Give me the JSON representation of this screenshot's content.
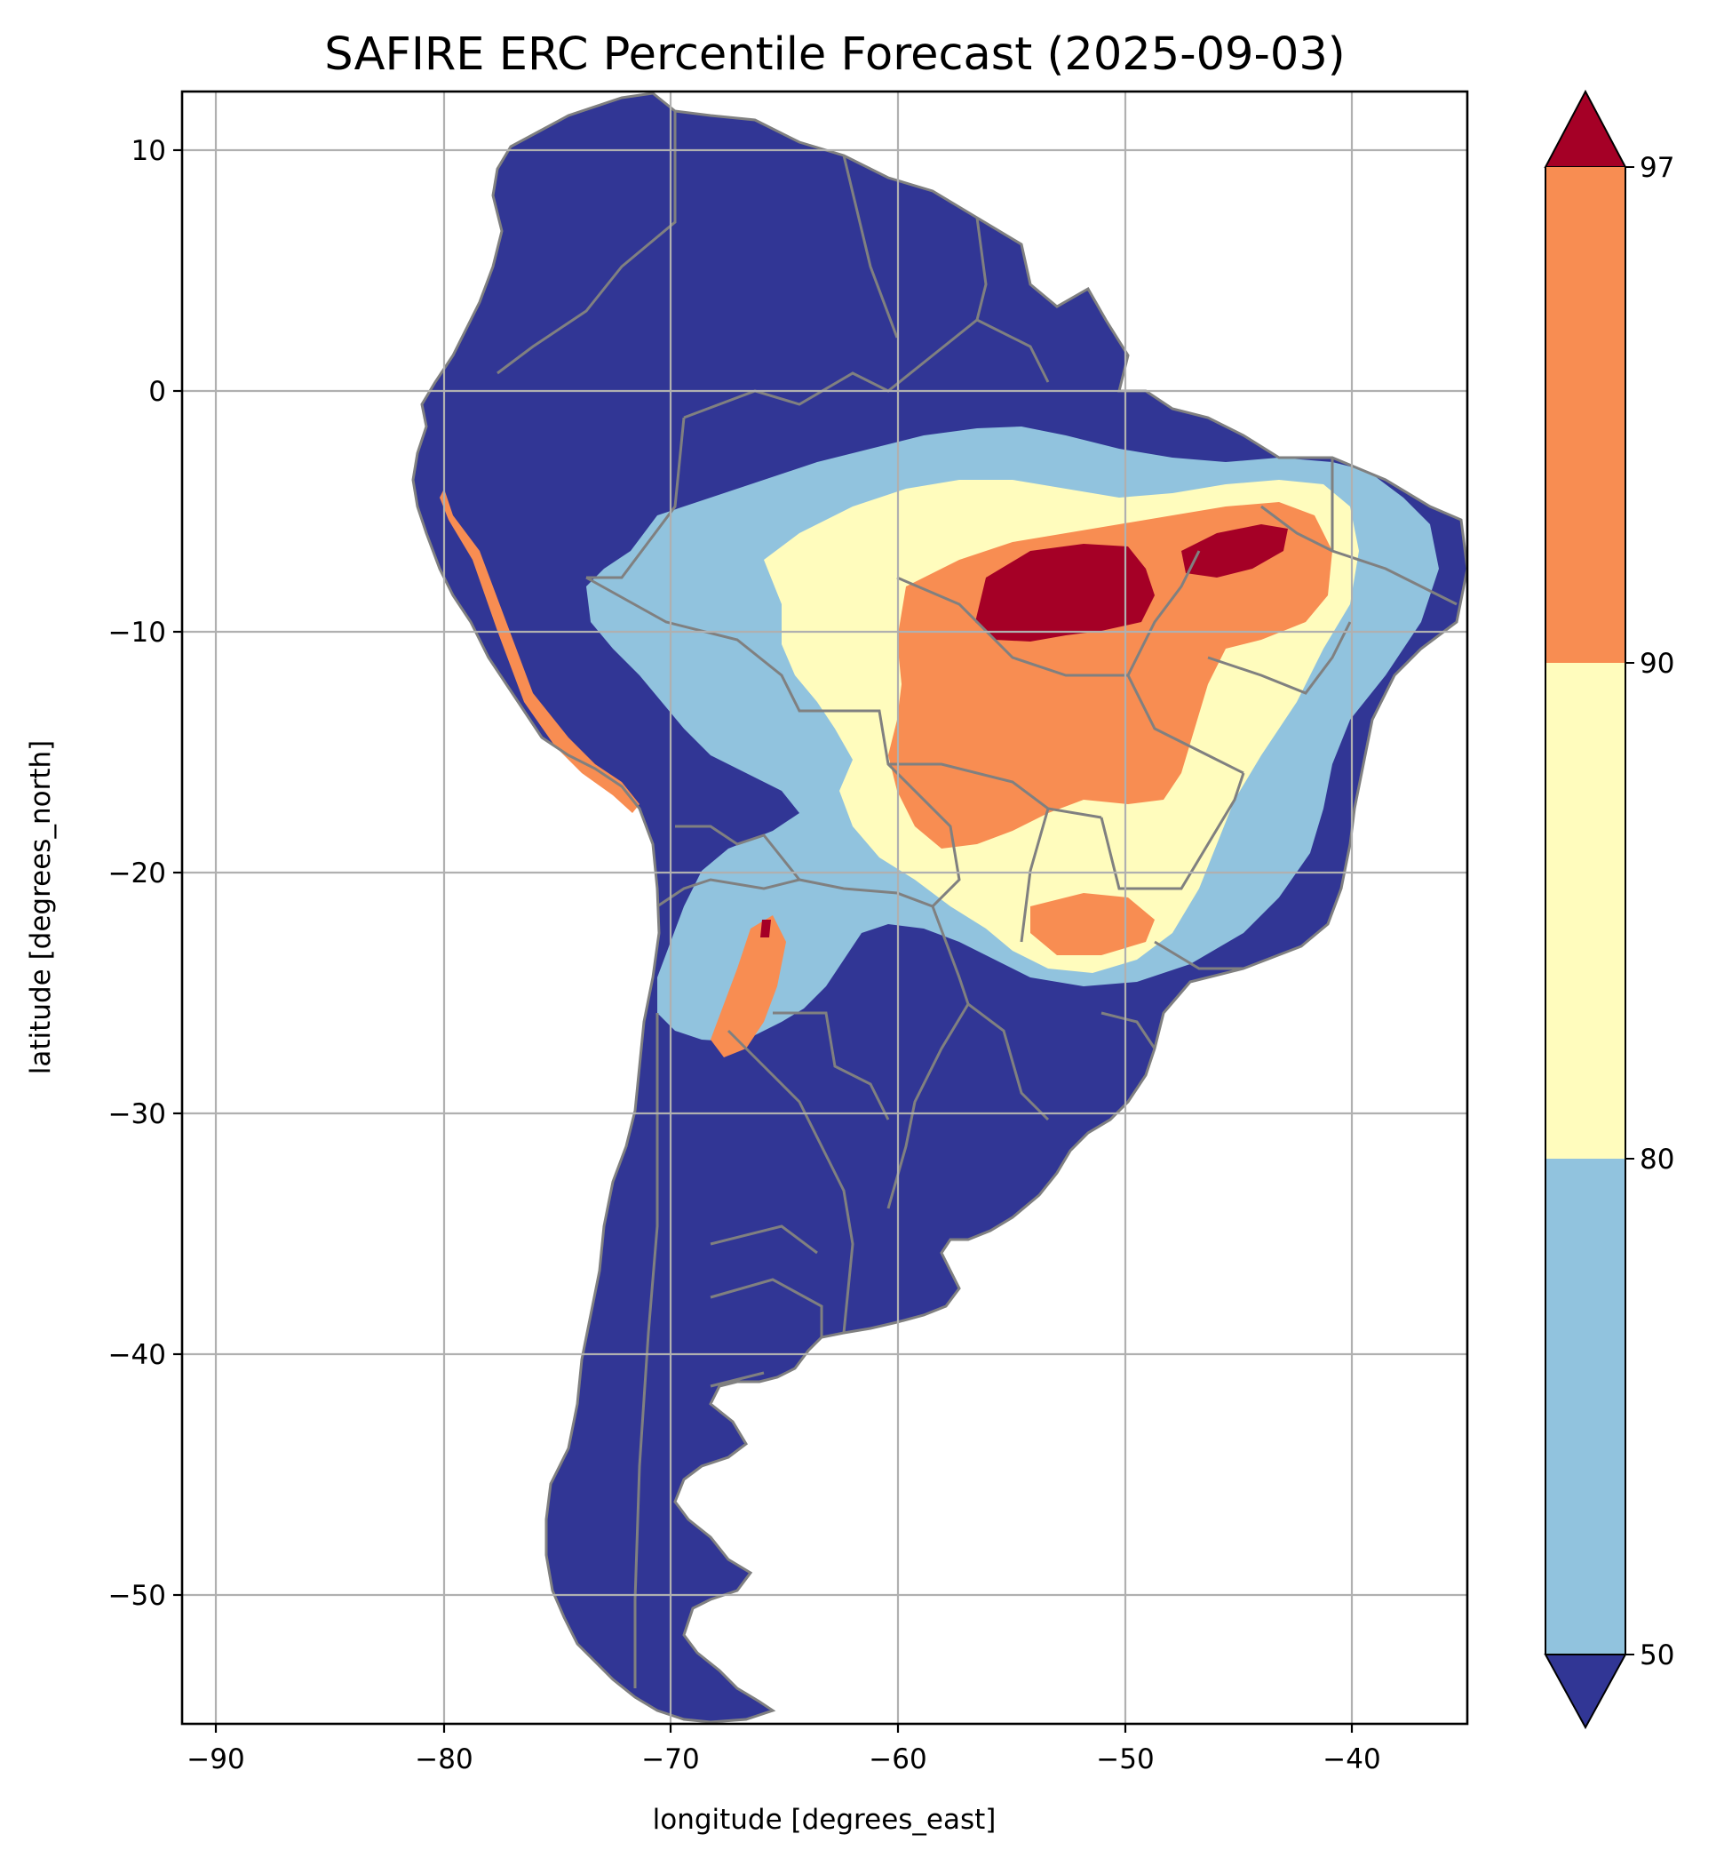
{
  "title": "SAFIRE ERC Percentile Forecast (2025-09-03)",
  "xlabel": "longitude [degrees_east]",
  "ylabel": "latitude [degrees_north]",
  "x_ticks": [
    "−90",
    "−80",
    "−70",
    "−60",
    "−50",
    "−40"
  ],
  "y_ticks": [
    "10",
    "0",
    "−10",
    "−20",
    "−30",
    "−40",
    "−50"
  ],
  "colorbar": {
    "tick_labels": [
      "50",
      "80",
      "90",
      "97"
    ],
    "bands": [
      {
        "range": "<50",
        "color": "#313695",
        "extend": "min"
      },
      {
        "range": "50-80",
        "color": "#91c3de"
      },
      {
        "range": "80-90",
        "color": "#fffcbd"
      },
      {
        "range": "90-97",
        "color": "#f88d52"
      },
      {
        "range": ">97",
        "color": "#a50026",
        "extend": "max"
      }
    ]
  },
  "map": {
    "region": "South America",
    "x_range": [
      -91.5,
      -35
    ],
    "y_range": [
      -55.8,
      12.4
    ],
    "grid": true,
    "border_color": "#808080",
    "land_fill": "#313695"
  }
}
